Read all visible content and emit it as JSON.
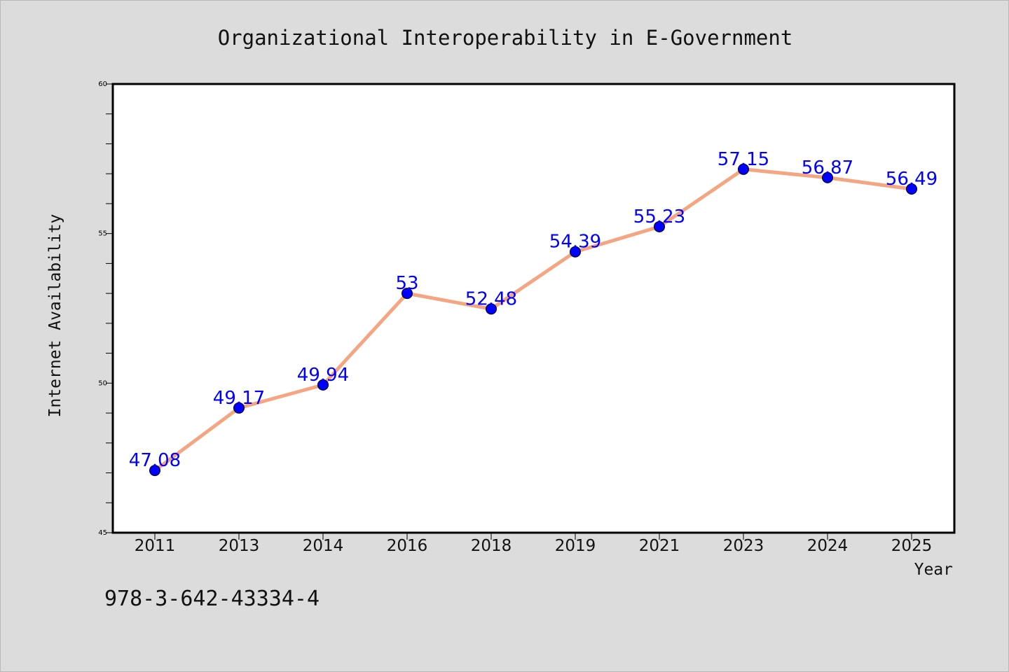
{
  "chart_data": {
    "type": "line",
    "title": "Organizational Interoperability in E-Government",
    "xlabel": "Year",
    "ylabel": "Internet Availability",
    "categories": [
      "2011",
      "2013",
      "2014",
      "2016",
      "2018",
      "2019",
      "2021",
      "2023",
      "2024",
      "2025"
    ],
    "values": [
      47.08,
      49.17,
      49.94,
      53,
      52.48,
      54.39,
      55.23,
      57.15,
      56.87,
      56.49
    ],
    "data_labels": [
      "47.08",
      "49.17",
      "49.94",
      "53",
      "52.48",
      "54.39",
      "55.23",
      "57.15",
      "56.87",
      "56.49"
    ],
    "ylim": [
      45,
      60
    ],
    "y_major_ticks": [
      "45",
      "50",
      "55",
      "60"
    ],
    "y_minor_step": 1,
    "grid": false,
    "line_color": "#f4a582",
    "marker_color": "#0000ff",
    "label_color": "#0000ff",
    "background_color": "#dcdcdc",
    "plot_background_color": "#ffffff"
  },
  "footer": {
    "isbn": "978-3-642-43334-4"
  }
}
